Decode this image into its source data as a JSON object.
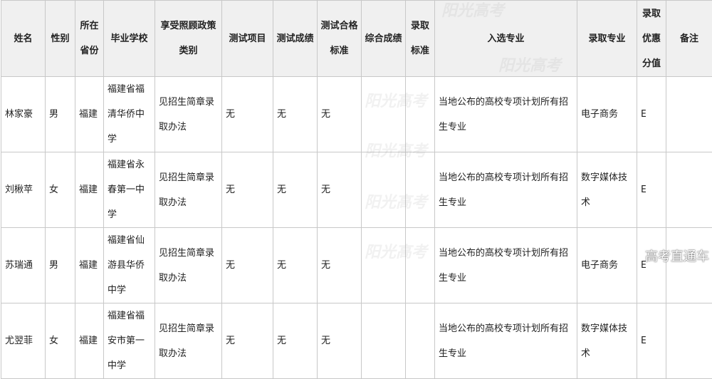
{
  "headers": [
    "姓名",
    "性别",
    "所在省份",
    "毕业学校",
    "享受照顾政策类别",
    "测试项目",
    "测试成绩",
    "测试合格标准",
    "综合成绩",
    "录取标准",
    "入选专业",
    "录取专业",
    "录取优惠分值",
    "备注"
  ],
  "rows": [
    [
      "林家豪",
      "男",
      "福建",
      "福建省福清华侨中学",
      "见招生简章录取办法",
      "无",
      "无",
      "无",
      "",
      "",
      "当地公布的高校专项计划所有招生专业",
      "电子商务",
      "E",
      ""
    ],
    [
      "刘楸苹",
      "女",
      "福建",
      "福建省永春第一中学",
      "见招生简章录取办法",
      "无",
      "无",
      "无",
      "",
      "",
      "当地公布的高校专项计划所有招生专业",
      "数字媒体技术",
      "E",
      ""
    ],
    [
      "苏瑞通",
      "男",
      "福建",
      "福建省仙游县华侨中学",
      "见招生简章录取办法",
      "无",
      "无",
      "无",
      "",
      "",
      "当地公布的高校专项计划所有招生专业",
      "电子商务",
      "E",
      ""
    ],
    [
      "尤翌菲",
      "女",
      "福建",
      "福建省福安市第一中学",
      "见招生简章录取办法",
      "无",
      "无",
      "无",
      "",
      "",
      "当地公布的高校专项计划所有招生专业",
      "数字媒体技术",
      "E",
      ""
    ]
  ],
  "watermark": "阳光高考",
  "brand_watermark": "高考直通车"
}
